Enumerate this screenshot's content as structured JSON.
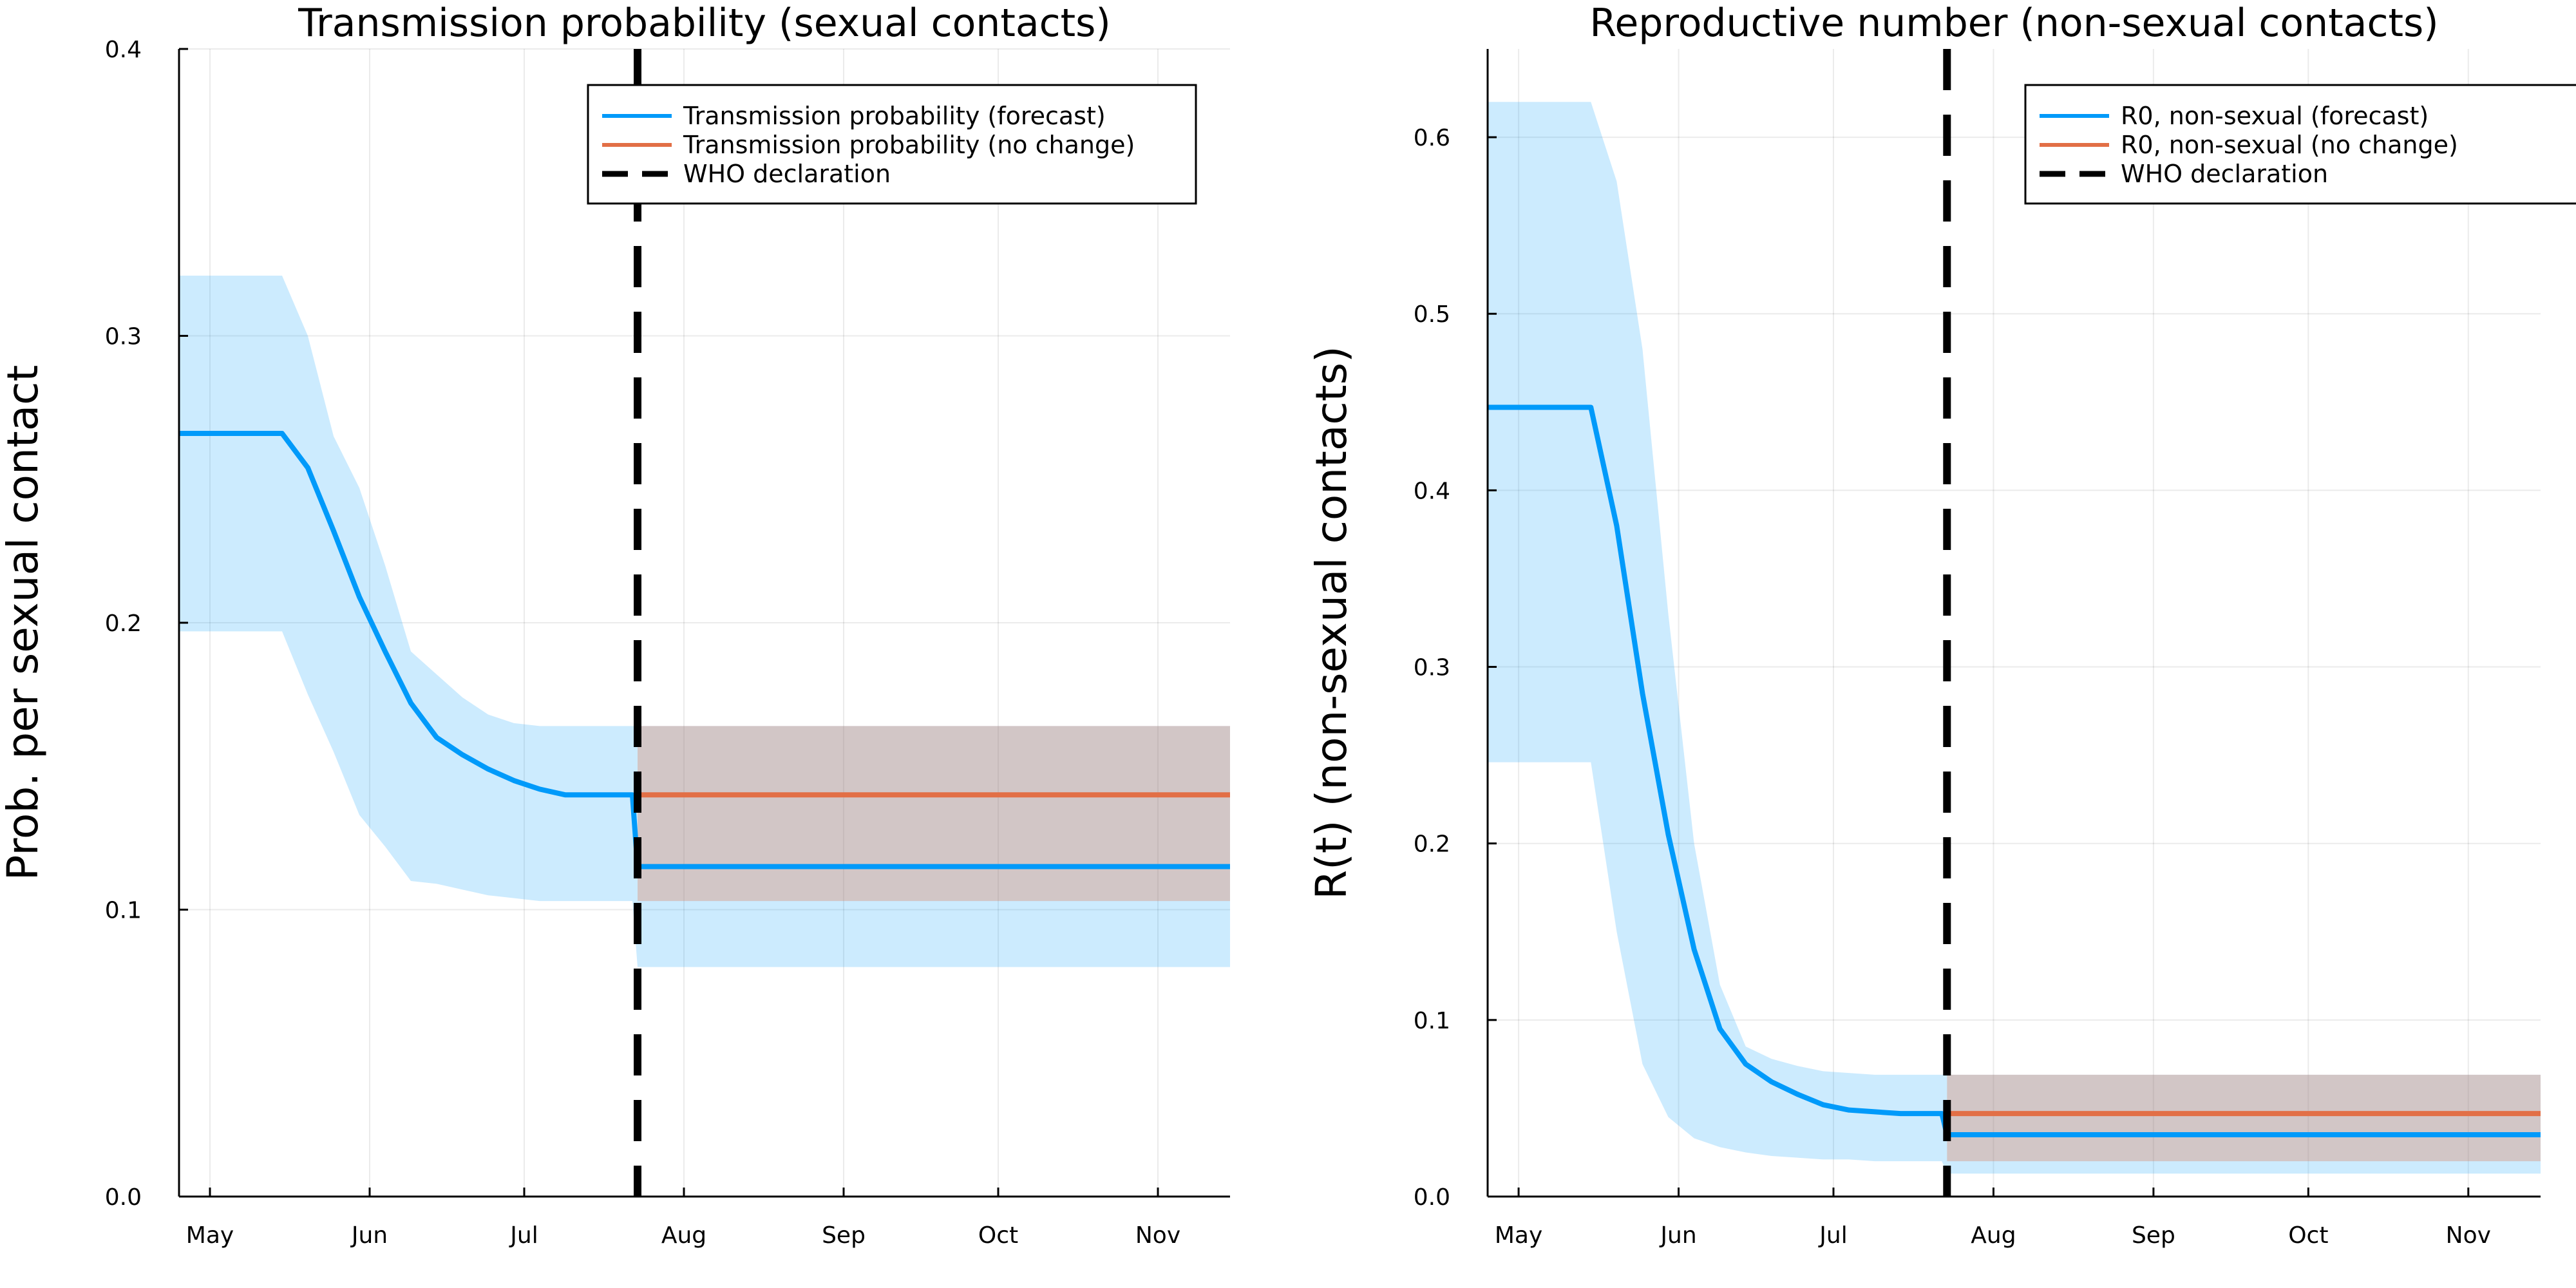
{
  "chart_data": [
    {
      "type": "line",
      "title": "Transmission probability (sexual contacts)",
      "xlabel": "",
      "ylabel": "Prob. per sexual contact",
      "x_tick_labels": [
        "May",
        "Jun",
        "Jul",
        "Aug",
        "Sep",
        "Oct",
        "Nov"
      ],
      "x_tick_dates": [
        "2022-05-01",
        "2022-06-01",
        "2022-07-01",
        "2022-08-01",
        "2022-09-01",
        "2022-10-01",
        "2022-11-01"
      ],
      "xlim": [
        "2022-04-25",
        "2022-11-15"
      ],
      "ylim": [
        0.0,
        0.4
      ],
      "y_ticks": [
        0.0,
        0.1,
        0.2,
        0.3,
        0.4
      ],
      "y_tick_labels": [
        "0.0",
        "0.1",
        "0.2",
        "0.3",
        "0.4"
      ],
      "grid": true,
      "legend_position": "top-right",
      "legend": [
        "Transmission probability (forecast)",
        "Transmission probability (no change)",
        "WHO declaration"
      ],
      "vline": {
        "name": "WHO declaration",
        "x": "2022-07-23"
      },
      "series": [
        {
          "name": "Transmission probability (forecast)",
          "color": "#009AFA",
          "x": [
            "2022-04-25",
            "2022-05-10",
            "2022-05-15",
            "2022-05-20",
            "2022-05-25",
            "2022-05-30",
            "2022-06-04",
            "2022-06-09",
            "2022-06-14",
            "2022-06-19",
            "2022-06-24",
            "2022-06-29",
            "2022-07-04",
            "2022-07-09",
            "2022-07-14",
            "2022-07-22",
            "2022-07-23",
            "2022-08-10",
            "2022-09-01",
            "2022-10-01",
            "2022-11-15"
          ],
          "y": [
            0.266,
            0.266,
            0.266,
            0.254,
            0.232,
            0.209,
            0.19,
            0.172,
            0.16,
            0.154,
            0.149,
            0.145,
            0.142,
            0.14,
            0.14,
            0.14,
            0.115,
            0.115,
            0.115,
            0.115,
            0.115
          ],
          "lower": [
            0.197,
            0.197,
            0.197,
            0.175,
            0.155,
            0.133,
            0.122,
            0.11,
            0.109,
            0.107,
            0.105,
            0.104,
            0.103,
            0.103,
            0.103,
            0.103,
            0.08,
            0.08,
            0.08,
            0.08,
            0.08
          ],
          "upper": [
            0.321,
            0.321,
            0.321,
            0.3,
            0.265,
            0.247,
            0.22,
            0.19,
            0.182,
            0.174,
            0.168,
            0.165,
            0.164,
            0.164,
            0.164,
            0.164,
            0.164,
            0.164,
            0.164,
            0.164,
            0.164
          ]
        },
        {
          "name": "Transmission probability (no change)",
          "color": "#E26F46",
          "x": [
            "2022-07-23",
            "2022-11-15"
          ],
          "y": [
            0.14,
            0.14
          ],
          "lower": [
            0.103,
            0.103
          ],
          "upper": [
            0.164,
            0.164
          ]
        }
      ]
    },
    {
      "type": "line",
      "title": "Reproductive number (non-sexual contacts)",
      "xlabel": "",
      "ylabel": "R(t) (non-sexual contacts)",
      "x_tick_labels": [
        "May",
        "Jun",
        "Jul",
        "Aug",
        "Sep",
        "Oct",
        "Nov"
      ],
      "x_tick_dates": [
        "2022-05-01",
        "2022-06-01",
        "2022-07-01",
        "2022-08-01",
        "2022-09-01",
        "2022-10-01",
        "2022-11-01"
      ],
      "xlim": [
        "2022-04-25",
        "2022-11-15"
      ],
      "ylim": [
        0.0,
        0.65
      ],
      "y_ticks": [
        0.0,
        0.1,
        0.2,
        0.3,
        0.4,
        0.5,
        0.6
      ],
      "y_tick_labels": [
        "0.0",
        "0.1",
        "0.2",
        "0.3",
        "0.4",
        "0.5",
        "0.6"
      ],
      "grid": true,
      "legend_position": "top-right",
      "legend": [
        "R0, non-sexual (forecast)",
        "R0, non-sexual (no change)",
        "WHO declaration"
      ],
      "vline": {
        "name": "WHO declaration",
        "x": "2022-07-23"
      },
      "series": [
        {
          "name": "R0, non-sexual (forecast)",
          "color": "#009AFA",
          "x": [
            "2022-04-25",
            "2022-05-10",
            "2022-05-15",
            "2022-05-20",
            "2022-05-25",
            "2022-05-30",
            "2022-06-04",
            "2022-06-09",
            "2022-06-14",
            "2022-06-19",
            "2022-06-24",
            "2022-06-29",
            "2022-07-04",
            "2022-07-09",
            "2022-07-14",
            "2022-07-22",
            "2022-07-23",
            "2022-08-10",
            "2022-09-01",
            "2022-10-01",
            "2022-11-15"
          ],
          "y": [
            0.447,
            0.447,
            0.447,
            0.38,
            0.285,
            0.205,
            0.14,
            0.095,
            0.075,
            0.065,
            0.058,
            0.052,
            0.049,
            0.048,
            0.047,
            0.047,
            0.035,
            0.035,
            0.035,
            0.035,
            0.035
          ],
          "lower": [
            0.246,
            0.246,
            0.246,
            0.15,
            0.075,
            0.045,
            0.033,
            0.028,
            0.025,
            0.023,
            0.022,
            0.021,
            0.021,
            0.02,
            0.02,
            0.02,
            0.013,
            0.013,
            0.013,
            0.013,
            0.013
          ],
          "upper": [
            0.62,
            0.62,
            0.62,
            0.575,
            0.48,
            0.33,
            0.2,
            0.12,
            0.085,
            0.078,
            0.074,
            0.071,
            0.07,
            0.069,
            0.069,
            0.069,
            0.069,
            0.069,
            0.069,
            0.069,
            0.069
          ]
        },
        {
          "name": "R0, non-sexual (no change)",
          "color": "#E26F46",
          "x": [
            "2022-07-23",
            "2022-11-15"
          ],
          "y": [
            0.047,
            0.047
          ],
          "lower": [
            0.02,
            0.02
          ],
          "upper": [
            0.069,
            0.069
          ]
        }
      ]
    }
  ]
}
